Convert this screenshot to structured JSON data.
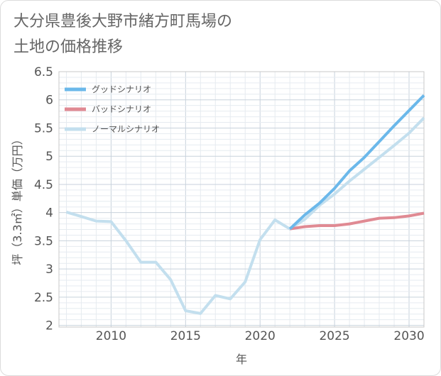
{
  "title_line1": "大分県豊後大野市緒方町馬場の",
  "title_line2": "土地の価格推移",
  "chart_data": {
    "type": "line",
    "xlabel": "年",
    "ylabel": "坪（3.3㎡）単価（万円）",
    "xlim": [
      2006.5,
      2031
    ],
    "ylim": [
      1.97,
      6.5
    ],
    "xticks": [
      2010,
      2015,
      2020,
      2025,
      2030
    ],
    "yticks": [
      2,
      2.5,
      3,
      3.5,
      4,
      4.5,
      5,
      5.5,
      6,
      6.5
    ],
    "grid": true,
    "legend_position": "top-left",
    "series": [
      {
        "name": "グッドシナリオ",
        "color": "#6bb8ea",
        "x": [
          2022,
          2023,
          2024,
          2025,
          2026,
          2027,
          2028,
          2029,
          2030,
          2031
        ],
        "y": [
          3.71,
          3.96,
          4.17,
          4.43,
          4.74,
          4.98,
          5.26,
          5.54,
          5.81,
          6.08
        ]
      },
      {
        "name": "バッドシナリオ",
        "color": "#e08a93",
        "x": [
          2022,
          2023,
          2024,
          2025,
          2026,
          2027,
          2028,
          2029,
          2030,
          2031
        ],
        "y": [
          3.71,
          3.75,
          3.77,
          3.77,
          3.8,
          3.85,
          3.9,
          3.91,
          3.94,
          3.99
        ]
      },
      {
        "name": "ノーマルシナリオ",
        "color": "#c3dfee",
        "x": [
          2007,
          2008,
          2009,
          2010,
          2011,
          2012,
          2013,
          2014,
          2015,
          2016,
          2017,
          2018,
          2019,
          2020,
          2021,
          2022,
          2023,
          2024,
          2025,
          2026,
          2027,
          2028,
          2029,
          2030,
          2031
        ],
        "y": [
          4.01,
          3.93,
          3.85,
          3.84,
          3.5,
          3.12,
          3.12,
          2.81,
          2.26,
          2.21,
          2.53,
          2.47,
          2.77,
          3.52,
          3.87,
          3.71,
          3.88,
          4.13,
          4.33,
          4.56,
          4.77,
          4.98,
          5.19,
          5.41,
          5.68
        ]
      }
    ]
  }
}
